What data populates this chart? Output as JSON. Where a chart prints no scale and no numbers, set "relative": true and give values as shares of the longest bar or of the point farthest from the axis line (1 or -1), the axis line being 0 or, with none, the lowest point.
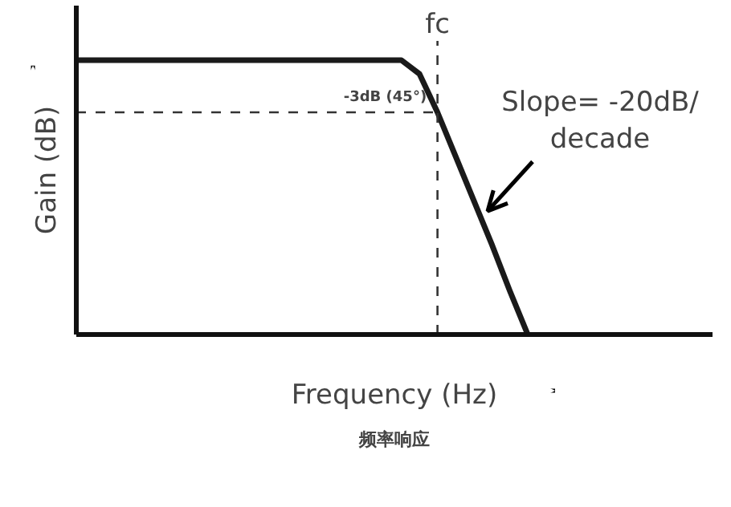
{
  "chart_data": {
    "type": "line",
    "relative": true,
    "xlabel": "Frequency (Hz)",
    "ylabel": "Gain (dB)",
    "color": "#1a1a1a",
    "line_style": "solid",
    "categories": [
      null,
      null,
      null,
      null,
      null,
      null,
      null,
      null,
      null,
      null,
      null,
      null,
      null,
      null,
      null,
      null,
      null,
      null,
      null,
      null,
      null,
      null,
      null,
      null,
      null,
      null
    ],
    "values": [
      1,
      1,
      1,
      1,
      1,
      1,
      1,
      1,
      1,
      1,
      1,
      1,
      1,
      1,
      1,
      1,
      1,
      1,
      1,
      0.95,
      0.81,
      0.65,
      0.49,
      0.33,
      0.16,
      0
    ],
    "ref_lines": [
      {
        "axis": "y",
        "value": 0.81,
        "label": "-3dB (45°)",
        "line_style": "dashed",
        "color": "#333333"
      }
    ],
    "annotations": [
      "fc",
      "Slope= -20dB/\ndecade",
      "频率响应"
    ]
  }
}
